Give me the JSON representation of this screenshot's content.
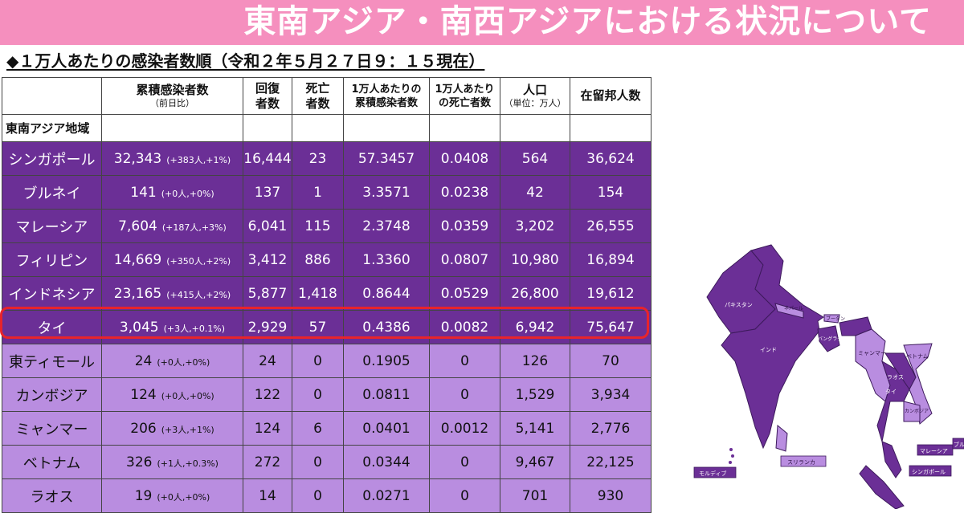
{
  "slide": {
    "title": "東南アジア・南西アジアにおける状況について",
    "subtitle": "◆１万人あたりの感染者数順（令和２年５月２７日９：１５現在）"
  },
  "table": {
    "headers": {
      "cases_line1": "累積感染者数",
      "cases_line2": "（前日比）",
      "recovered_line1": "回復",
      "recovered_line2": "者数",
      "deaths_line1": "死亡",
      "deaths_line2": "者数",
      "per10k_line1": "1万人あたりの",
      "per10k_line2": "累積感染者数",
      "death10k_line1": "1万人あたり",
      "death10k_line2": "の死亡者数",
      "pop_line1": "人口",
      "pop_line2": "（単位：万人）",
      "residents": "在留邦人数"
    },
    "region_label": "東南アジア地域",
    "rows": [
      {
        "country": "シンガポール",
        "cases": "32,343",
        "delta": "(+383人,+1%)",
        "recovered": "16,444",
        "deaths": "23",
        "per10k": "57.3457",
        "death10k": "0.0408",
        "population": "564",
        "residents": "36,624"
      },
      {
        "country": "ブルネイ",
        "cases": "141",
        "delta": "(+0人,+0%)",
        "recovered": "137",
        "deaths": "1",
        "per10k": "3.3571",
        "death10k": "0.0238",
        "population": "42",
        "residents": "154"
      },
      {
        "country": "マレーシア",
        "cases": "7,604",
        "delta": "(+187人,+3%)",
        "recovered": "6,041",
        "deaths": "115",
        "per10k": "2.3748",
        "death10k": "0.0359",
        "population": "3,202",
        "residents": "26,555"
      },
      {
        "country": "フィリピン",
        "cases": "14,669",
        "delta": "(+350人,+2%)",
        "recovered": "3,412",
        "deaths": "886",
        "per10k": "1.3360",
        "death10k": "0.0807",
        "population": "10,980",
        "residents": "16,894"
      },
      {
        "country": "インドネシア",
        "cases": "23,165",
        "delta": "(+415人,+2%)",
        "recovered": "5,877",
        "deaths": "1,418",
        "per10k": "0.8644",
        "death10k": "0.0529",
        "population": "26,800",
        "residents": "19,612"
      },
      {
        "country": "タイ",
        "cases": "3,045",
        "delta": "(+3人,+0.1%)",
        "recovered": "2,929",
        "deaths": "57",
        "per10k": "0.4386",
        "death10k": "0.0082",
        "population": "6,942",
        "residents": "75,647"
      },
      {
        "country": "東ティモール",
        "cases": "24",
        "delta": "(+0人,+0%)",
        "recovered": "24",
        "deaths": "0",
        "per10k": "0.1905",
        "death10k": "0",
        "population": "126",
        "residents": "70"
      },
      {
        "country": "カンボジア",
        "cases": "124",
        "delta": "(+0人,+0%)",
        "recovered": "122",
        "deaths": "0",
        "per10k": "0.0811",
        "death10k": "0",
        "population": "1,529",
        "residents": "3,934"
      },
      {
        "country": "ミャンマー",
        "cases": "206",
        "delta": "(+3人,+1%)",
        "recovered": "124",
        "deaths": "6",
        "per10k": "0.0401",
        "death10k": "0.0012",
        "population": "5,141",
        "residents": "2,776"
      },
      {
        "country": "ベトナム",
        "cases": "326",
        "delta": "(+1人,+0.3%)",
        "recovered": "272",
        "deaths": "0",
        "per10k": "0.0344",
        "death10k": "0",
        "population": "9,467",
        "residents": "22,125"
      },
      {
        "country": "ラオス",
        "cases": "19",
        "delta": "(+0人,+0%)",
        "recovered": "14",
        "deaths": "0",
        "per10k": "0.0271",
        "death10k": "0",
        "population": "701",
        "residents": "930"
      }
    ]
  },
  "map": {
    "labels": {
      "pakistan": "パキスタン",
      "nepal": "ネパール",
      "bhutan": "ブータン",
      "india": "インド",
      "bangladesh": "バングラデシュ",
      "myanmar": "ミャンマー",
      "vietnam": "ベトナム",
      "laos": "ラオス",
      "thailand": "タイ",
      "cambodia": "カンボジア",
      "srilanka": "スリランカ",
      "maldives": "モルディブ",
      "malaysia": "マレーシア",
      "singapore": "シンガポール",
      "brunei": "ブル"
    },
    "colors": {
      "dark": "#6b2f96",
      "light": "#b98de0",
      "outline": "#3d1a5c"
    }
  }
}
